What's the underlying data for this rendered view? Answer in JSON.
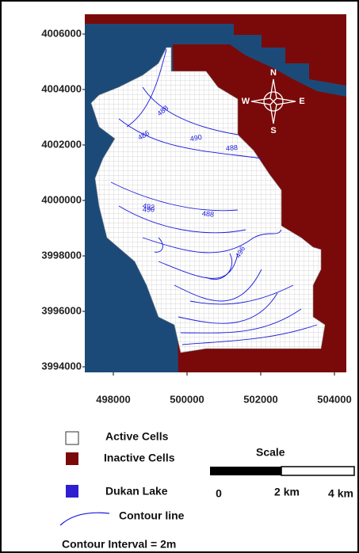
{
  "map": {
    "y_axis_labels": [
      "4006000",
      "4004000",
      "4002000",
      "4000000",
      "3998000",
      "3996000",
      "3994000"
    ],
    "x_axis_labels": [
      "498000",
      "500000",
      "502000",
      "504000"
    ],
    "compass": {
      "n": "N",
      "e": "E",
      "s": "S",
      "w": "W"
    },
    "contour_labels": [
      "490",
      "488",
      "488",
      "486",
      "492",
      "490",
      "488",
      "496"
    ],
    "legend": [
      {
        "label": "Active Cells"
      },
      {
        "label": "Inactive Cells"
      },
      {
        "label": "Dukan Lake"
      },
      {
        "label": "Contour line"
      }
    ],
    "scale": {
      "title": "Scale",
      "labels": [
        "0",
        "2 km",
        "4 km"
      ]
    },
    "contour_interval": "Contour Interval = 2m"
  }
}
